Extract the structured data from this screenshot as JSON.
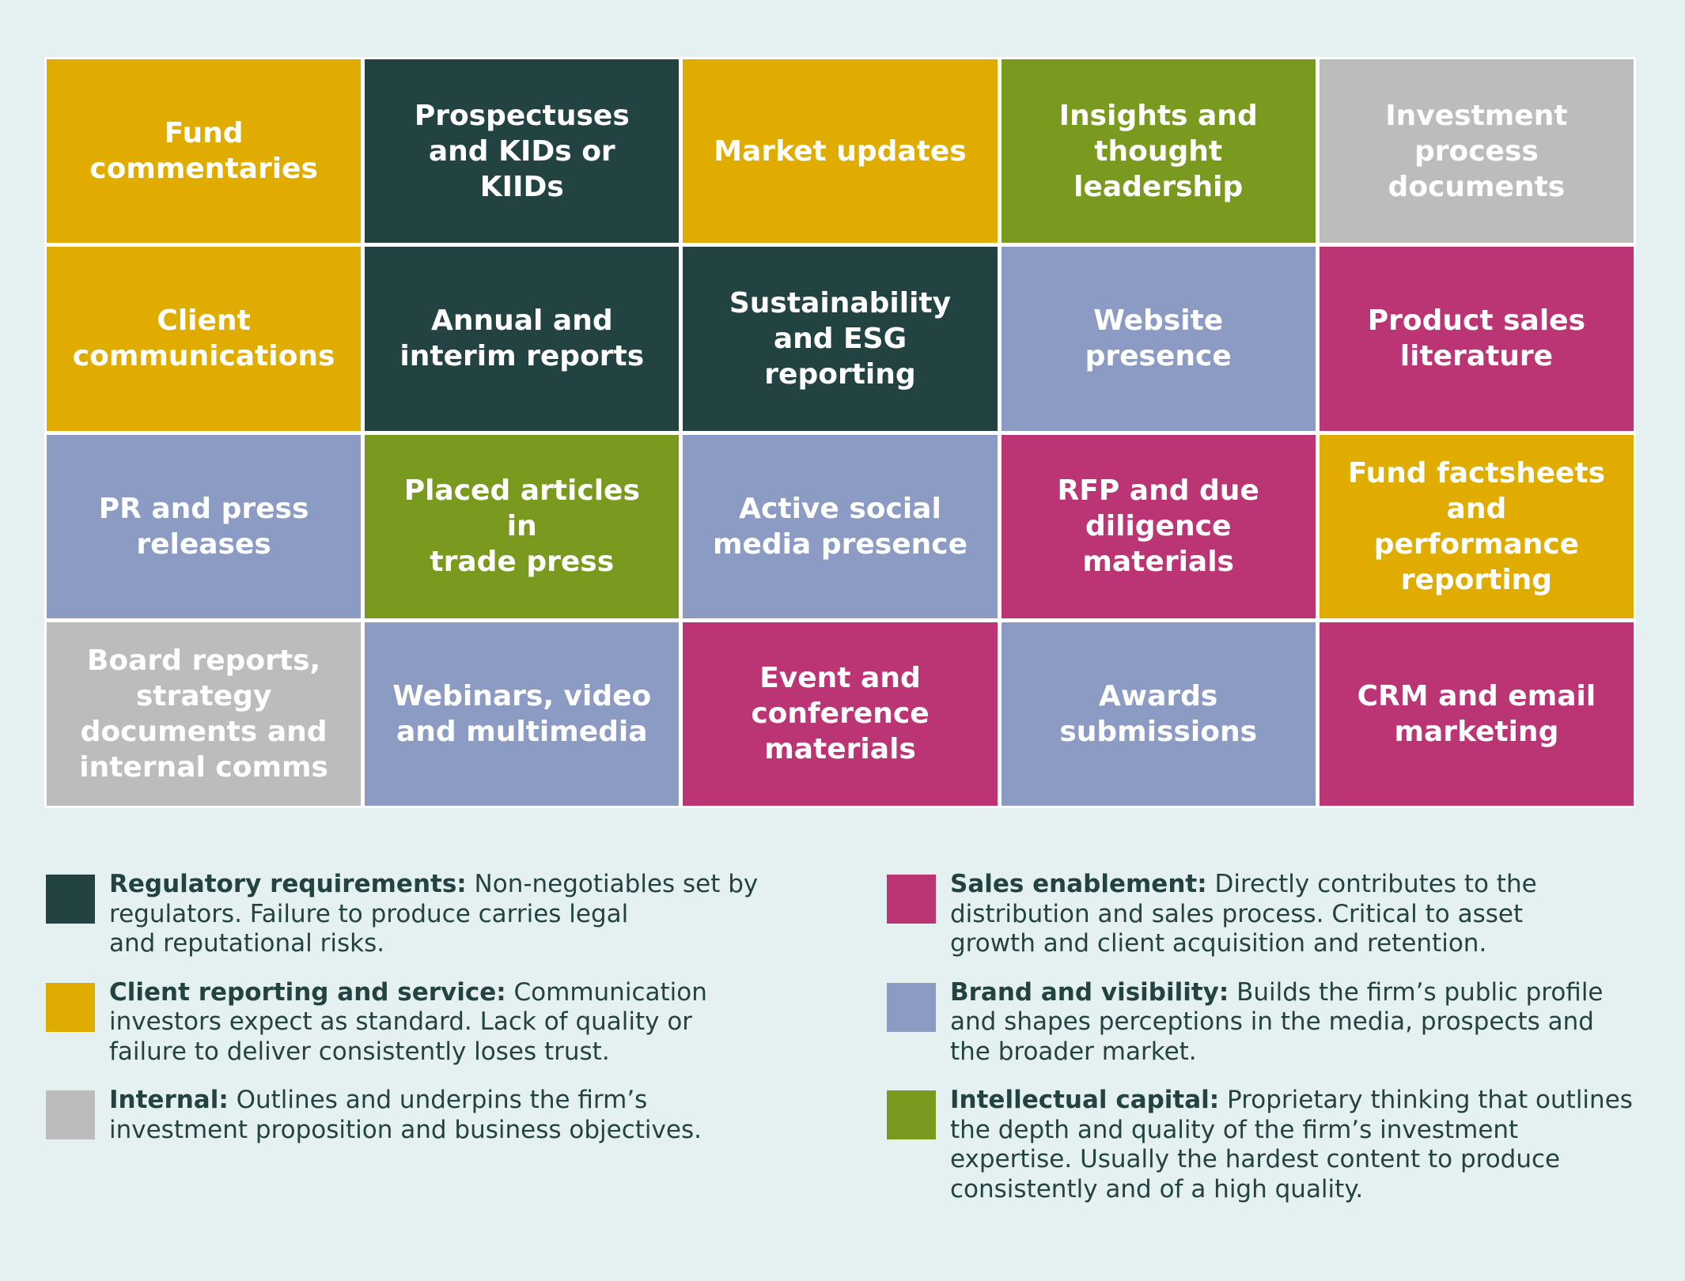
{
  "categories": {
    "regulatory": {
      "color": "#234242"
    },
    "client": {
      "color": "#e0ac00"
    },
    "internal": {
      "color": "#bcbcbc"
    },
    "sales": {
      "color": "#bb3574"
    },
    "brand": {
      "color": "#8b9bc4"
    },
    "intellectual": {
      "color": "#7a9a1f"
    }
  },
  "tiles": [
    {
      "label": "Fund\ncommentaries",
      "category": "client"
    },
    {
      "label": "Prospectuses\nand KIDs or\nKIIDs",
      "category": "regulatory"
    },
    {
      "label": "Market updates",
      "category": "client"
    },
    {
      "label": "Insights and\nthought\nleadership",
      "category": "intellectual"
    },
    {
      "label": "Investment\nprocess\ndocuments",
      "category": "internal"
    },
    {
      "label": "Client\ncommunications",
      "category": "client"
    },
    {
      "label": "Annual and\ninterim reports",
      "category": "regulatory"
    },
    {
      "label": "Sustainability\nand ESG\nreporting",
      "category": "regulatory"
    },
    {
      "label": "Website\npresence",
      "category": "brand"
    },
    {
      "label": "Product sales\nliterature",
      "category": "sales"
    },
    {
      "label": "PR and press\nreleases",
      "category": "brand"
    },
    {
      "label": "Placed articles in\ntrade press",
      "category": "intellectual"
    },
    {
      "label": "Active social\nmedia presence",
      "category": "brand"
    },
    {
      "label": "RFP and due\ndiligence\nmaterials",
      "category": "sales"
    },
    {
      "label": "Fund factsheets\nand performance\nreporting",
      "category": "client"
    },
    {
      "label": "Board reports,\nstrategy\ndocuments and\ninternal comms",
      "category": "internal"
    },
    {
      "label": "Webinars, video\nand multimedia",
      "category": "brand"
    },
    {
      "label": "Event and\nconference\nmaterials",
      "category": "sales"
    },
    {
      "label": "Awards\nsubmissions",
      "category": "brand"
    },
    {
      "label": "CRM and email\nmarketing",
      "category": "sales"
    }
  ],
  "legend": {
    "left": [
      {
        "category": "regulatory",
        "title": "Regulatory requirements:",
        "text": " Non-negotiables set by\nregulators. Failure to produce carries legal\nand reputational risks."
      },
      {
        "category": "client",
        "title": "Client reporting and service:",
        "text": " Communication\ninvestors expect as standard. Lack of quality or\nfailure to deliver consistently loses trust."
      },
      {
        "category": "internal",
        "title": "Internal:",
        "text": " Outlines and underpins the firm’s\ninvestment proposition and business objectives."
      }
    ],
    "right": [
      {
        "category": "sales",
        "title": "Sales enablement:",
        "text": " Directly contributes to the\ndistribution and sales process. Critical to asset\ngrowth and client acquisition and retention."
      },
      {
        "category": "brand",
        "title": "Brand and visibility:",
        "text": " Builds the firm’s public profile\nand shapes perceptions in the media, prospects and\nthe broader market."
      },
      {
        "category": "intellectual",
        "title": "Intellectual capital:",
        "text": " Proprietary thinking that outlines\nthe depth and quality of the firm’s investment\nexpertise. Usually the hardest content to produce\nconsistently and of a high quality."
      }
    ]
  }
}
